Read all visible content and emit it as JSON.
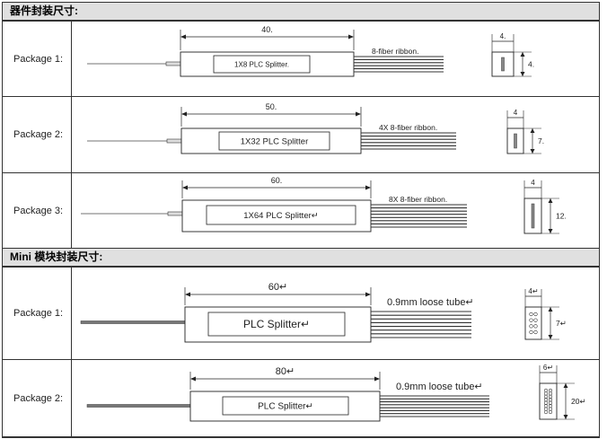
{
  "sections": [
    {
      "title": "器件封装尺寸:",
      "packages": [
        {
          "label": "Package 1:",
          "length": "40.",
          "splitter": "1X8 PLC Splitter.",
          "fiber": "8-fiber ribbon.",
          "width": "4.",
          "height": "4."
        },
        {
          "label": "Package 2:",
          "length": "50.",
          "splitter": "1X32 PLC Splitter",
          "fiber": "4X 8-fiber ribbon.",
          "width": "4",
          "height": "7."
        },
        {
          "label": "Package 3:",
          "length": "60.",
          "splitter": "1X64 PLC Splitter↵",
          "fiber": "8X 8-fiber ribbon.",
          "width": "4",
          "height": "12."
        }
      ]
    },
    {
      "title": "Mini 模块封装尺寸:",
      "packages": [
        {
          "label": "Package 1:",
          "length": "60↵",
          "splitter": "PLC Splitter↵",
          "fiber": "0.9mm loose tube↵",
          "width": "4↵",
          "height": "7↵"
        },
        {
          "label": "Package 2:",
          "length": "80↵",
          "splitter": "PLC Splitter↵",
          "fiber": "0.9mm loose tube↵",
          "width": "6↵",
          "height": "20↵"
        }
      ]
    }
  ]
}
